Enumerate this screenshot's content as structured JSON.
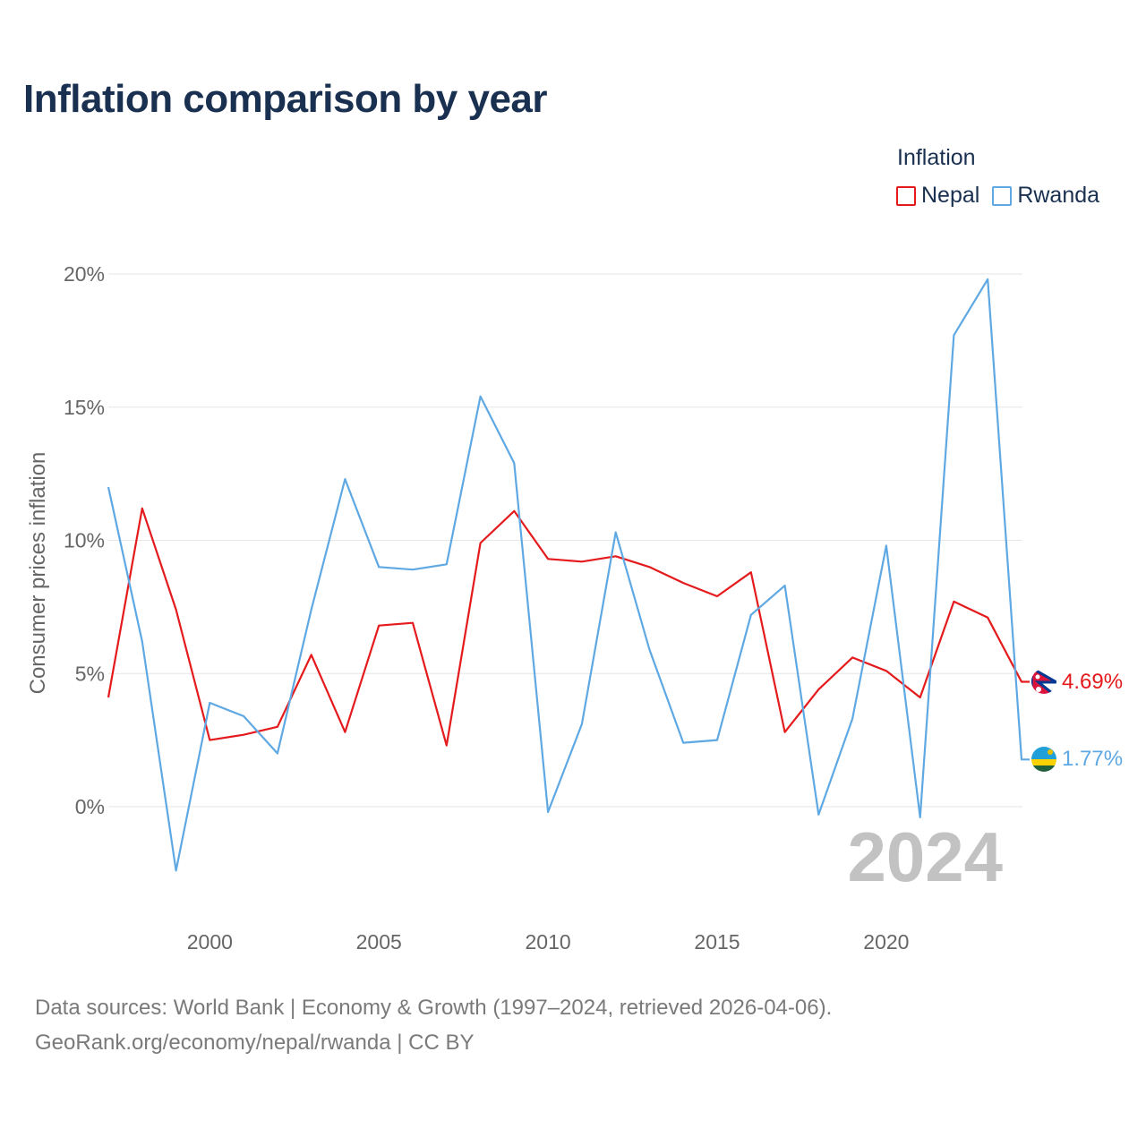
{
  "title": "Inflation comparison by year",
  "legend": {
    "title": "Inflation",
    "items": [
      {
        "label": "Nepal",
        "color": "#e41a1c"
      },
      {
        "label": "Rwanda",
        "color": "#5ea8e3"
      }
    ]
  },
  "year_watermark": "2024",
  "source": {
    "line1": "Data sources: World Bank | Economy & Growth (1997–2024, retrieved 2026-04-06).",
    "line2": "GeoRank.org/economy/nepal/rwanda | CC BY"
  },
  "chart_data": {
    "type": "line",
    "title": "Inflation comparison by year",
    "xlabel": "",
    "ylabel": "Consumer prices inflation",
    "x": [
      1997,
      1998,
      1999,
      2000,
      2001,
      2002,
      2003,
      2004,
      2005,
      2006,
      2007,
      2008,
      2009,
      2010,
      2011,
      2012,
      2013,
      2014,
      2015,
      2016,
      2017,
      2018,
      2019,
      2020,
      2021,
      2022,
      2023,
      2024
    ],
    "xlim": [
      1997,
      2024
    ],
    "ylim": [
      -3.5,
      20.5
    ],
    "x_ticks": [
      2000,
      2005,
      2010,
      2015,
      2020
    ],
    "x_tick_labels": [
      "2000",
      "2005",
      "2010",
      "2015",
      "2020"
    ],
    "y_ticks": [
      0,
      5,
      10,
      15,
      20
    ],
    "y_tick_labels": [
      "0%",
      "5%",
      "10%",
      "15%",
      "20%"
    ],
    "grid": true,
    "series": [
      {
        "name": "Nepal",
        "color": "#e41a1c",
        "flag": "nepal-flag-icon",
        "end_label": "4.69%",
        "values": [
          4.1,
          11.2,
          7.4,
          2.5,
          2.7,
          3.0,
          5.7,
          2.8,
          6.8,
          6.9,
          2.3,
          9.9,
          11.1,
          9.3,
          9.2,
          9.4,
          9.0,
          8.4,
          7.9,
          8.8,
          2.8,
          4.4,
          5.6,
          5.1,
          4.1,
          7.7,
          7.1,
          4.69
        ]
      },
      {
        "name": "Rwanda",
        "color": "#5ea8e3",
        "flag": "rwanda-flag-icon",
        "end_label": "1.77%",
        "values": [
          12.0,
          6.2,
          -2.4,
          3.9,
          3.4,
          2.0,
          7.4,
          12.3,
          9.0,
          8.9,
          9.1,
          15.4,
          12.9,
          -0.2,
          3.1,
          10.3,
          5.9,
          2.4,
          2.5,
          7.2,
          8.3,
          -0.3,
          3.3,
          9.8,
          -0.4,
          17.7,
          19.8,
          1.77
        ]
      }
    ]
  }
}
